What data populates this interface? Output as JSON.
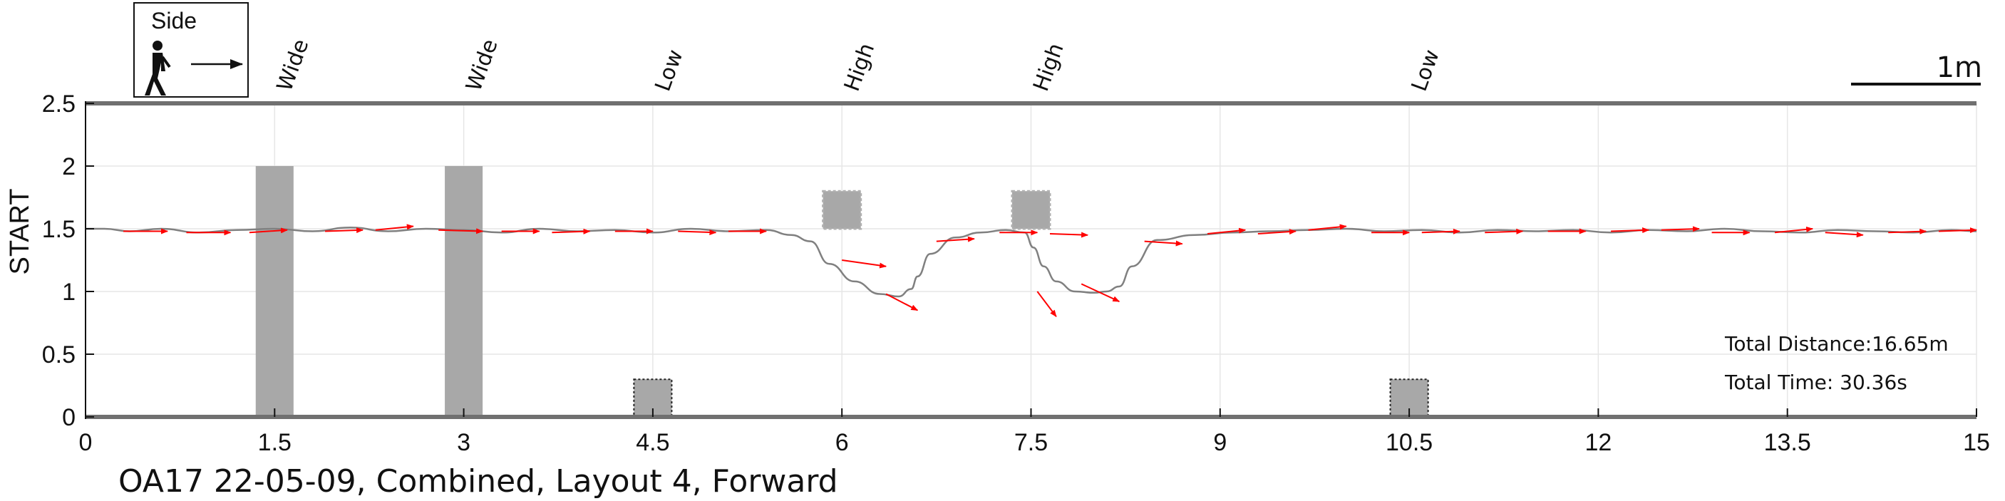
{
  "chart_data": {
    "type": "line",
    "title": "OA17 22-05-09, Combined, Layout 4, Forward",
    "ylabel": "START",
    "xlabel": "",
    "xlim": [
      0,
      15
    ],
    "ylim": [
      0,
      2.5
    ],
    "xticks": [
      0,
      1.5,
      3,
      4.5,
      6,
      7.5,
      9,
      10.5,
      12,
      13.5,
      15
    ],
    "xtick_labels": [
      "0",
      "1.5",
      "3",
      "4.5",
      "6",
      "7.5",
      "9",
      "10.5",
      "12",
      "13.5",
      "15"
    ],
    "yticks": [
      0,
      0.5,
      1,
      1.5,
      2,
      2.5
    ],
    "ytick_labels": [
      "0",
      "0.5",
      "1",
      "1.5",
      "2",
      "2.5"
    ],
    "grid": true,
    "legend": {
      "label": "Side",
      "placement": "top-left"
    },
    "scale_bar": {
      "label": "1m",
      "length": 1
    },
    "obstacles": [
      {
        "label": "Wide",
        "type": "wide",
        "x0": 1.35,
        "x1": 1.65,
        "y0": 0,
        "y1": 2
      },
      {
        "label": "Wide",
        "type": "wide",
        "x0": 2.85,
        "x1": 3.15,
        "y0": 0,
        "y1": 2
      },
      {
        "label": "Low",
        "type": "low",
        "x0": 4.35,
        "x1": 4.65,
        "y0": 0,
        "y1": 0.3
      },
      {
        "label": "High",
        "type": "high",
        "x0": 5.85,
        "x1": 6.15,
        "y0": 1.5,
        "y1": 1.8
      },
      {
        "label": "High",
        "type": "high",
        "x0": 7.35,
        "x1": 7.65,
        "y0": 1.5,
        "y1": 1.8
      },
      {
        "label": "Low",
        "type": "low",
        "x0": 10.35,
        "x1": 10.65,
        "y0": 0,
        "y1": 0.3
      }
    ],
    "path": {
      "x": [
        0,
        0.15,
        0.35,
        0.6,
        0.9,
        1.2,
        1.5,
        1.8,
        2.1,
        2.4,
        2.7,
        3.0,
        3.3,
        3.6,
        3.9,
        4.2,
        4.5,
        4.8,
        5.1,
        5.4,
        5.6,
        5.75,
        5.9,
        6.1,
        6.3,
        6.45,
        6.55,
        6.6,
        6.7,
        6.9,
        7.1,
        7.3,
        7.45,
        7.52,
        7.6,
        7.7,
        7.85,
        8.0,
        8.1,
        8.2,
        8.3,
        8.5,
        8.8,
        9.1,
        9.4,
        9.7,
        10.0,
        10.3,
        10.6,
        10.9,
        11.2,
        11.5,
        11.8,
        12.1,
        12.4,
        12.7,
        13.0,
        13.3,
        13.6,
        13.9,
        14.2,
        14.5,
        14.8,
        15
      ],
      "y": [
        1.5,
        1.5,
        1.48,
        1.5,
        1.47,
        1.49,
        1.5,
        1.48,
        1.51,
        1.48,
        1.5,
        1.49,
        1.47,
        1.5,
        1.48,
        1.49,
        1.47,
        1.5,
        1.48,
        1.49,
        1.45,
        1.4,
        1.22,
        1.08,
        0.98,
        0.96,
        1.02,
        1.12,
        1.3,
        1.43,
        1.47,
        1.49,
        1.47,
        1.35,
        1.2,
        1.08,
        1.0,
        0.99,
        1.0,
        1.04,
        1.2,
        1.41,
        1.45,
        1.47,
        1.48,
        1.49,
        1.5,
        1.48,
        1.49,
        1.47,
        1.49,
        1.48,
        1.49,
        1.47,
        1.49,
        1.48,
        1.5,
        1.48,
        1.47,
        1.49,
        1.48,
        1.47,
        1.49,
        1.48
      ]
    },
    "direction_arrows": [
      {
        "x0": 0.3,
        "y0": 1.48,
        "x1": 0.65,
        "y1": 1.48
      },
      {
        "x0": 0.8,
        "y0": 1.47,
        "x1": 1.15,
        "y1": 1.47
      },
      {
        "x0": 1.3,
        "y0": 1.47,
        "x1": 1.6,
        "y1": 1.49
      },
      {
        "x0": 1.9,
        "y0": 1.48,
        "x1": 2.2,
        "y1": 1.49
      },
      {
        "x0": 2.3,
        "y0": 1.49,
        "x1": 2.6,
        "y1": 1.52
      },
      {
        "x0": 2.8,
        "y0": 1.49,
        "x1": 3.15,
        "y1": 1.48
      },
      {
        "x0": 3.3,
        "y0": 1.48,
        "x1": 3.6,
        "y1": 1.48
      },
      {
        "x0": 3.7,
        "y0": 1.47,
        "x1": 4.0,
        "y1": 1.48
      },
      {
        "x0": 4.2,
        "y0": 1.48,
        "x1": 4.5,
        "y1": 1.48
      },
      {
        "x0": 4.7,
        "y0": 1.48,
        "x1": 5.0,
        "y1": 1.47
      },
      {
        "x0": 5.1,
        "y0": 1.48,
        "x1": 5.4,
        "y1": 1.48
      },
      {
        "x0": 6.0,
        "y0": 1.25,
        "x1": 6.35,
        "y1": 1.2
      },
      {
        "x0": 6.35,
        "y0": 0.98,
        "x1": 6.6,
        "y1": 0.85
      },
      {
        "x0": 6.75,
        "y0": 1.4,
        "x1": 7.05,
        "y1": 1.42
      },
      {
        "x0": 7.25,
        "y0": 1.47,
        "x1": 7.55,
        "y1": 1.47
      },
      {
        "x0": 7.65,
        "y0": 1.46,
        "x1": 7.95,
        "y1": 1.45
      },
      {
        "x0": 7.55,
        "y0": 1.0,
        "x1": 7.7,
        "y1": 0.8
      },
      {
        "x0": 7.9,
        "y0": 1.06,
        "x1": 8.2,
        "y1": 0.92
      },
      {
        "x0": 8.4,
        "y0": 1.4,
        "x1": 8.7,
        "y1": 1.38
      },
      {
        "x0": 8.9,
        "y0": 1.46,
        "x1": 9.2,
        "y1": 1.49
      },
      {
        "x0": 9.3,
        "y0": 1.46,
        "x1": 9.6,
        "y1": 1.48
      },
      {
        "x0": 9.7,
        "y0": 1.49,
        "x1": 10.0,
        "y1": 1.52
      },
      {
        "x0": 10.2,
        "y0": 1.47,
        "x1": 10.5,
        "y1": 1.47
      },
      {
        "x0": 10.6,
        "y0": 1.47,
        "x1": 10.9,
        "y1": 1.48
      },
      {
        "x0": 11.1,
        "y0": 1.47,
        "x1": 11.4,
        "y1": 1.48
      },
      {
        "x0": 11.6,
        "y0": 1.48,
        "x1": 11.9,
        "y1": 1.48
      },
      {
        "x0": 12.1,
        "y0": 1.48,
        "x1": 12.4,
        "y1": 1.49
      },
      {
        "x0": 12.5,
        "y0": 1.49,
        "x1": 12.8,
        "y1": 1.5
      },
      {
        "x0": 12.9,
        "y0": 1.47,
        "x1": 13.2,
        "y1": 1.47
      },
      {
        "x0": 13.4,
        "y0": 1.47,
        "x1": 13.7,
        "y1": 1.5
      },
      {
        "x0": 13.8,
        "y0": 1.47,
        "x1": 14.1,
        "y1": 1.45
      },
      {
        "x0": 14.3,
        "y0": 1.47,
        "x1": 14.6,
        "y1": 1.48
      },
      {
        "x0": 14.7,
        "y0": 1.48,
        "x1": 15.0,
        "y1": 1.49
      }
    ],
    "annotations": [
      "Total Distance:16.65m",
      "Total Time: 30.36s"
    ]
  },
  "colors": {
    "path": "#808080",
    "arrow": "#ff0000",
    "obstacle": "#a8a8a8",
    "grid": "#e6e6e6",
    "floor_line": "#707070"
  }
}
